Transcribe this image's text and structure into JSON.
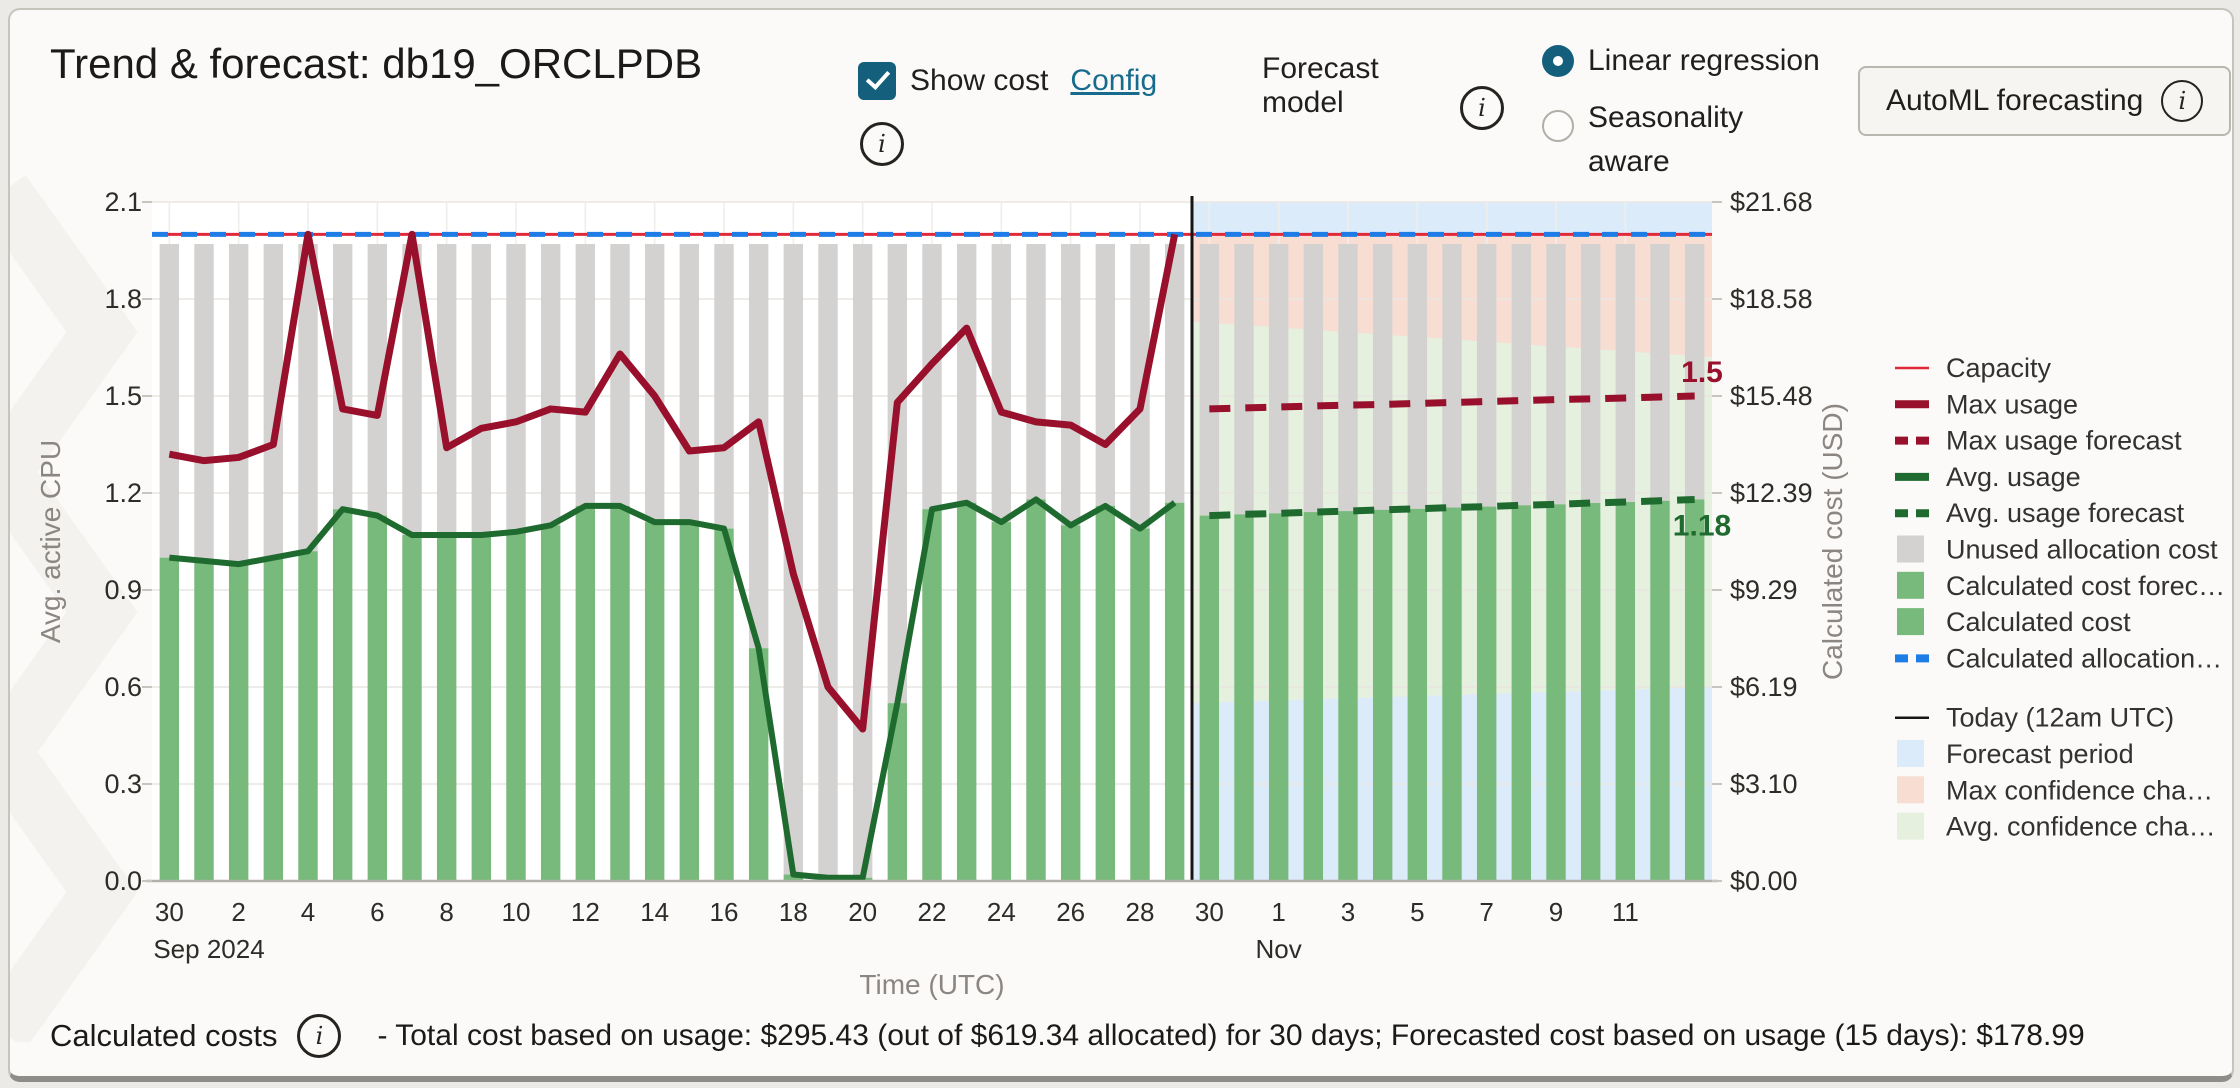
{
  "header": {
    "title": "Trend & forecast: db19_ORCLPDB",
    "show_cost_label": "Show cost",
    "config_label": "Config",
    "forecast_model_label": "Forecast model",
    "radio_linear_label": "Linear regression",
    "radio_seasonality_label": "Seasonality aware",
    "automl_button_label": "AutoML forecasting"
  },
  "footer": {
    "label": "Calculated costs",
    "text": "- Total cost based on usage: $295.43 (out of $619.34 allocated) for 30 days; Forecasted cost based on usage (15 days): $178.99"
  },
  "colors": {
    "teal": "#14607c",
    "link": "#176c8e",
    "bar_green": "#77ba7b",
    "bar_gray": "#d3d2d0",
    "max_line": "#98102b",
    "avg_line": "#1f6b2f",
    "capacity_red": "#e2293a",
    "allocation_blue": "#1e7ce6",
    "band_pink": "#f7ddd2",
    "band_green": "#e5f0df",
    "band_blue": "#dcebfa",
    "today_black": "#161514",
    "grid": "#e9e6e2",
    "axis_text": "#2e2c29",
    "axis_title": "#8b8681"
  },
  "chart_data": {
    "type": "bar",
    "subtype": "usage-cost-trend-forecast",
    "xlabel": "Time (UTC)",
    "ylabel_left": "Avg. active CPU",
    "ylabel_right": "Calculated cost (USD)",
    "ylim": [
      0,
      2.1
    ],
    "capacity": 2.0,
    "bar_top": 1.97,
    "y_left_ticks": [
      "0.0",
      "0.3",
      "0.6",
      "0.9",
      "1.2",
      "1.5",
      "1.8",
      "2.1"
    ],
    "y_right_ticks": [
      "$0.00",
      "$3.10",
      "$6.19",
      "$9.29",
      "$12.39",
      "$15.48",
      "$18.58",
      "$21.68"
    ],
    "x_ticks": [
      {
        "day": 0,
        "label": "30",
        "sublabel": "Sep 2024"
      },
      {
        "day": 2,
        "label": "2"
      },
      {
        "day": 4,
        "label": "4"
      },
      {
        "day": 6,
        "label": "6"
      },
      {
        "day": 8,
        "label": "8"
      },
      {
        "day": 10,
        "label": "10"
      },
      {
        "day": 12,
        "label": "12"
      },
      {
        "day": 14,
        "label": "14"
      },
      {
        "day": 16,
        "label": "16"
      },
      {
        "day": 18,
        "label": "18"
      },
      {
        "day": 20,
        "label": "20"
      },
      {
        "day": 22,
        "label": "22"
      },
      {
        "day": 24,
        "label": "24"
      },
      {
        "day": 26,
        "label": "26"
      },
      {
        "day": 28,
        "label": "28"
      },
      {
        "day": 30,
        "label": "30"
      },
      {
        "day": 32,
        "label": "1",
        "sublabel": "Nov"
      },
      {
        "day": 34,
        "label": "3"
      },
      {
        "day": 36,
        "label": "5"
      },
      {
        "day": 38,
        "label": "7"
      },
      {
        "day": 40,
        "label": "9"
      },
      {
        "day": 42,
        "label": "11"
      }
    ],
    "history": {
      "period": "Sep 30 - Oct 29, 2024",
      "max_usage": [
        1.32,
        1.3,
        1.31,
        1.35,
        2.0,
        1.46,
        1.44,
        2.0,
        1.34,
        1.4,
        1.42,
        1.46,
        1.45,
        1.63,
        1.5,
        1.33,
        1.34,
        1.42,
        0.95,
        0.6,
        0.47,
        1.48,
        1.6,
        1.71,
        1.45,
        1.42,
        1.41,
        1.35,
        1.46,
        2.0
      ],
      "avg_usage": [
        1.0,
        0.99,
        0.98,
        1.0,
        1.02,
        1.15,
        1.13,
        1.07,
        1.07,
        1.07,
        1.08,
        1.1,
        1.16,
        1.16,
        1.11,
        1.11,
        1.09,
        0.72,
        0.02,
        0.01,
        0.01,
        0.55,
        1.15,
        1.17,
        1.11,
        1.18,
        1.1,
        1.16,
        1.09,
        1.17
      ]
    },
    "forecast": {
      "period": "Oct 30 - Nov 13, 2024",
      "max_usage_forecast": [
        1.46,
        1.463,
        1.466,
        1.469,
        1.472,
        1.474,
        1.477,
        1.48,
        1.483,
        1.486,
        1.489,
        1.491,
        1.494,
        1.497,
        1.5
      ],
      "avg_usage_forecast": [
        1.13,
        1.134,
        1.137,
        1.141,
        1.144,
        1.148,
        1.151,
        1.155,
        1.158,
        1.162,
        1.165,
        1.169,
        1.172,
        1.176,
        1.18
      ],
      "max_confidence_band": {
        "top": 2.0,
        "bottom_start": 1.73,
        "bottom_end": 1.62
      },
      "avg_confidence_band": {
        "bottom_start": 0.55,
        "bottom_end": 0.6
      }
    },
    "annotations": [
      {
        "text": "1.5",
        "value": 1.5,
        "colorRef": "max_line"
      },
      {
        "text": "1.18",
        "value": 1.18,
        "colorRef": "avg_line"
      }
    ],
    "legend_groups": [
      [
        {
          "label": "Capacity",
          "swatch": "thin-line",
          "colorRef": "capacity_red"
        },
        {
          "label": "Max usage",
          "swatch": "thick-line",
          "colorRef": "max_line"
        },
        {
          "label": "Max usage forecast",
          "swatch": "dashed-line",
          "colorRef": "max_line"
        },
        {
          "label": "Avg. usage",
          "swatch": "thick-line",
          "colorRef": "avg_line"
        },
        {
          "label": "Avg. usage forecast",
          "swatch": "dashed-line",
          "colorRef": "avg_line"
        },
        {
          "label": "Unused allocation cost",
          "swatch": "square",
          "colorRef": "bar_gray"
        },
        {
          "label": "Calculated cost forec…",
          "swatch": "square",
          "colorRef": "bar_green"
        },
        {
          "label": "Calculated cost",
          "swatch": "square",
          "colorRef": "bar_green"
        },
        {
          "label": "Calculated allocation…",
          "swatch": "dashed-line",
          "colorRef": "allocation_blue"
        }
      ],
      [
        {
          "label": "Today (12am UTC)",
          "swatch": "thin-line",
          "colorRef": "today_black"
        },
        {
          "label": "Forecast period",
          "swatch": "square",
          "colorRef": "band_blue"
        },
        {
          "label": "Max confidence cha…",
          "swatch": "square",
          "colorRef": "band_pink"
        },
        {
          "label": "Avg. confidence cha…",
          "swatch": "square",
          "colorRef": "band_green"
        }
      ]
    ]
  }
}
